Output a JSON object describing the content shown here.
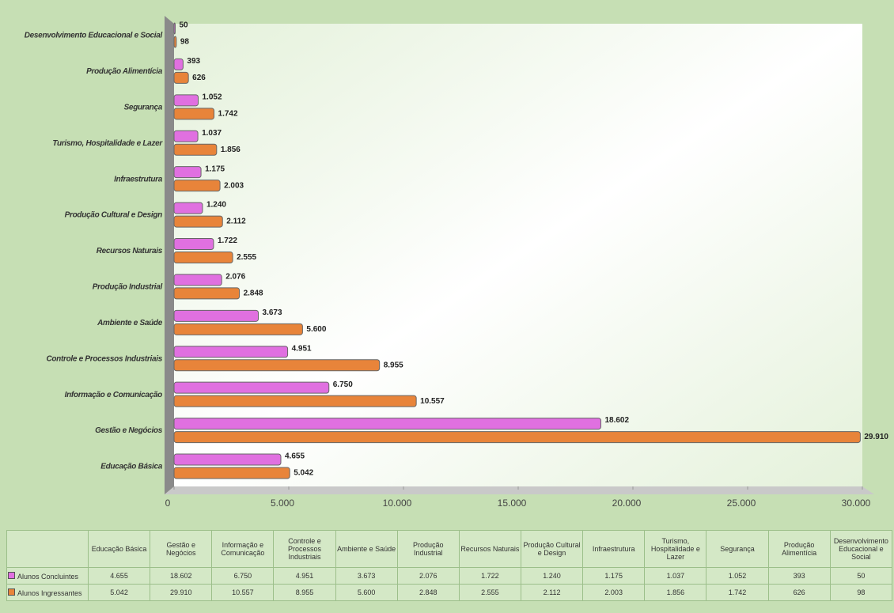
{
  "chart_data": {
    "type": "hbar",
    "categories": [
      "Educação Básica",
      "Gestão e Negócios",
      "Informação e Comunicação",
      "Controle e Processos Industriais",
      "Ambiente e Saúde",
      "Produção Industrial",
      "Recursos Naturais",
      "Produção Cultural e Design",
      "Infraestrutura",
      "Turismo, Hospitalidade e Lazer",
      "Segurança",
      "Produção Alimentícia",
      "Desenvolvimento Educacional e Social"
    ],
    "series": [
      {
        "name": "Alunos Concluintes",
        "color": "#e070e0",
        "values": [
          4655,
          18602,
          6750,
          4951,
          3673,
          2076,
          1722,
          1240,
          1175,
          1037,
          1052,
          393,
          50
        ],
        "value_labels": [
          "4.655",
          "18.602",
          "6.750",
          "4.951",
          "3.673",
          "2.076",
          "1.722",
          "1.240",
          "1.175",
          "1.037",
          "1.052",
          "393",
          "50"
        ]
      },
      {
        "name": "Alunos Ingressantes",
        "color": "#e8843a",
        "values": [
          5042,
          29910,
          10557,
          8955,
          5600,
          2848,
          2555,
          2112,
          2003,
          1856,
          1742,
          626,
          98
        ],
        "value_labels": [
          "5.042",
          "29.910",
          "10.557",
          "8.955",
          "5.600",
          "2.848",
          "2.555",
          "2.112",
          "2.003",
          "1.856",
          "1.742",
          "626",
          "98"
        ]
      }
    ],
    "xlim": [
      0,
      30000
    ],
    "xticks": [
      0,
      {
        "value": 5000,
        "label": "5.000"
      },
      {
        "value": 10000,
        "label": "10.000"
      },
      {
        "value": 15000,
        "label": "15.000"
      },
      {
        "value": 20000,
        "label": "20.000"
      },
      {
        "value": 25000,
        "label": "25.000"
      },
      {
        "value": 30000,
        "label": "30.000"
      }
    ]
  }
}
